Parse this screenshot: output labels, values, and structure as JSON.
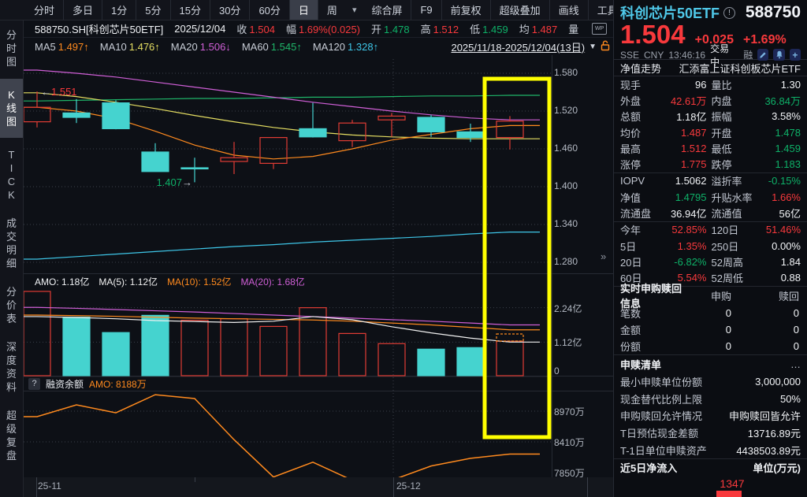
{
  "colors": {
    "red": "#f8393c",
    "green": "#0eb168",
    "white": "#f2f4f7",
    "gray": "#c2c7d1",
    "candle_up": "#e03c34",
    "candle_down": "#45d3cf",
    "ma5": "#ff8a1e",
    "ma10": "#e5de62",
    "ma20": "#cf5fd6",
    "ma60": "#1fb569",
    "ma120": "#3ec6e8",
    "vma5": "#f0f0f0",
    "vma10": "#ff8a1e",
    "vma20": "#cf5fd6",
    "financing": "#ff8a1e",
    "highlight": "#ffff00",
    "grid": "#3a3f4a",
    "divider": "#262a33"
  },
  "toolbar": {
    "periods": [
      "分时",
      "多日",
      "1分",
      "5分",
      "15分",
      "30分",
      "60分",
      "日",
      "周"
    ],
    "selected": "日",
    "dropdown_icon": "▾",
    "right_items": [
      "综合屏",
      "F9",
      "前复权",
      "超级叠加",
      "画线",
      "工具"
    ],
    "gear_icon": "⚙",
    "help_icon": "?",
    "chevron_right_icon": "›"
  },
  "info_bar": {
    "items": [
      {
        "t": "588750.SH[科创芯片50ETF]",
        "c": "w"
      },
      {
        "t": "2025/12/04",
        "c": "w"
      },
      {
        "l": "收",
        "v": "1.504",
        "c": "r"
      },
      {
        "l": "幅",
        "v": "1.69%(0.025)",
        "c": "r"
      },
      {
        "l": "开",
        "v": "1.478",
        "c": "g"
      },
      {
        "l": "高",
        "v": "1.512",
        "c": "r"
      },
      {
        "l": "低",
        "v": "1.459",
        "c": "g"
      },
      {
        "l": "均",
        "v": "1.487",
        "c": "r"
      },
      {
        "l": "量",
        "v": "",
        "c": "w"
      }
    ],
    "wp_icon": "WP"
  },
  "ma_bar": {
    "items": [
      {
        "label": "MA5",
        "value": "1.497",
        "arrow": "↑",
        "color": "ma5"
      },
      {
        "label": "MA10",
        "value": "1.476",
        "arrow": "↑",
        "color": "ma10"
      },
      {
        "label": "MA20",
        "value": "1.506",
        "arrow": "↓",
        "color": "ma20"
      },
      {
        "label": "MA60",
        "value": "1.545",
        "arrow": "↑",
        "color": "ma60"
      },
      {
        "label": "MA120",
        "value": "1.328",
        "arrow": "↑",
        "color": "ma120"
      }
    ],
    "range": "2025/11/18-2025/12/04(13日)",
    "caret": "▼"
  },
  "sidebar": {
    "items": [
      {
        "label": "分时图",
        "active": false
      },
      {
        "label": "K线图",
        "active": true
      },
      {
        "label": "TICK",
        "active": false
      },
      {
        "label": "成交明细",
        "active": false
      },
      {
        "label": "分价表",
        "active": false
      },
      {
        "label": "深度资料",
        "active": false
      },
      {
        "label": "超级复盘",
        "active": false
      }
    ]
  },
  "collapse_arrow": "»",
  "quote_header": {
    "name": "科创芯片50ETF",
    "info_icon": "!",
    "code": "588750",
    "price": "1.504",
    "change": "+0.025",
    "change_pct": "+1.69%",
    "exchange": "SSE",
    "currency": "CNY",
    "time": "13:46:16",
    "status": "交易中",
    "margin_flag": "融"
  },
  "panel": {
    "fund_row": {
      "left": "净值走势",
      "right": "汇添富上证科创板芯片ETF"
    },
    "stats_sections": [
      [
        [
          "现手",
          "96",
          "w",
          "量比",
          "1.30",
          "w"
        ],
        [
          "外盘",
          "42.61万",
          "r",
          "内盘",
          "36.84万",
          "g"
        ],
        [
          "总额",
          "1.18亿",
          "w",
          "振幅",
          "3.58%",
          "w"
        ],
        [
          "均价",
          "1.487",
          "r",
          "开盘",
          "1.478",
          "g"
        ],
        [
          "最高",
          "1.512",
          "r",
          "最低",
          "1.459",
          "g"
        ],
        [
          "涨停",
          "1.775",
          "r",
          "跌停",
          "1.183",
          "g"
        ]
      ],
      [
        [
          "IOPV",
          "1.5062",
          "w",
          "溢折率",
          "-0.15%",
          "g"
        ],
        [
          "净值",
          "1.4795",
          "g",
          "升贴水率",
          "1.66%",
          "r"
        ],
        [
          "流通盘",
          "36.94亿",
          "w",
          "流通值",
          "56亿",
          "w"
        ]
      ],
      [
        [
          "今年",
          "52.85%",
          "r",
          "120日",
          "51.46%",
          "r"
        ],
        [
          "5日",
          "1.35%",
          "r",
          "250日",
          "0.00%",
          "w"
        ],
        [
          "20日",
          "-6.82%",
          "g",
          "52周高",
          "1.84",
          "w"
        ],
        [
          "60日",
          "5.54%",
          "r",
          "52周低",
          "0.88",
          "w"
        ]
      ]
    ],
    "subscribe": {
      "title": "实时申购赎回信息",
      "col1": "申购",
      "col2": "赎回",
      "rows": [
        [
          "笔数",
          "0",
          "0"
        ],
        [
          "金额",
          "0",
          "0"
        ],
        [
          "份额",
          "0",
          "0"
        ]
      ]
    },
    "redeem": {
      "title": "申赎清单",
      "more": "…",
      "rows": [
        [
          "最小申赎单位份额",
          "3,000,000"
        ],
        [
          "现金替代比例上限",
          "50%"
        ],
        [
          "申购赎回允许情况",
          "申购赎回皆允许"
        ],
        [
          "T日预估现金差额",
          "13716.89元"
        ],
        [
          "T-1日单位申赎资产",
          "4438503.89元"
        ]
      ]
    },
    "netflow": {
      "title": "近5日净流入",
      "unit": "单位(万元)",
      "bar_value": "1347"
    }
  },
  "chart_data": {
    "type": "candlestick",
    "title": "588750.SH 科创芯片50ETF 日K 2025/11/18-2025/12/04",
    "price_axis": {
      "ticks": [
        "1.580",
        "1.520",
        "1.460",
        "1.400",
        "1.340",
        "1.280"
      ],
      "max": 1.58,
      "step": 0.06
    },
    "x_axis_labels": [
      "25-11",
      "25-12"
    ],
    "candles": [
      {
        "o": 1.503,
        "c": 1.526,
        "h": 1.551,
        "l": 1.494,
        "v": 2.77,
        "cu": true,
        "vu": true
      },
      {
        "o": 1.517,
        "c": 1.51,
        "h": 1.539,
        "l": 1.501,
        "v": 1.93,
        "cu": false,
        "vu": false
      },
      {
        "o": 1.533,
        "c": 1.492,
        "h": 1.537,
        "l": 1.491,
        "v": 1.43,
        "cu": false,
        "vu": false
      },
      {
        "o": 1.455,
        "c": 1.424,
        "h": 1.469,
        "l": 1.424,
        "v": 1.99,
        "cu": false,
        "vu": false
      },
      {
        "o": 1.43,
        "c": 1.429,
        "h": 1.446,
        "l": 1.407,
        "v": 1.83,
        "cu": false,
        "vu": true
      },
      {
        "o": 1.44,
        "c": 1.446,
        "h": 1.471,
        "l": 1.42,
        "v": 1.88,
        "cu": true,
        "vu": true
      },
      {
        "o": 1.437,
        "c": 1.478,
        "h": 1.478,
        "l": 1.428,
        "v": 1.63,
        "cu": true,
        "vu": true
      },
      {
        "o": 1.492,
        "c": 1.479,
        "h": 1.533,
        "l": 1.478,
        "v": 2.24,
        "cu": false,
        "vu": true
      },
      {
        "o": 1.473,
        "c": 1.501,
        "h": 1.506,
        "l": 1.463,
        "v": 1.4,
        "cu": true,
        "vu": true
      },
      {
        "o": 1.506,
        "c": 1.512,
        "h": 1.517,
        "l": 1.479,
        "v": 1.07,
        "cu": true,
        "vu": true
      },
      {
        "o": 1.51,
        "c": 1.487,
        "h": 1.514,
        "l": 1.479,
        "v": 0.89,
        "cu": false,
        "vu": false
      },
      {
        "o": 1.487,
        "c": 1.478,
        "h": 1.5,
        "l": 1.471,
        "v": 0.94,
        "cu": false,
        "vu": false
      },
      {
        "o": 1.478,
        "c": 1.504,
        "h": 1.512,
        "l": 1.459,
        "v": 1.15,
        "cu": true,
        "vu": true
      }
    ],
    "ma_price": {
      "ma5": [
        1.526,
        1.52,
        1.508,
        1.488,
        1.466,
        1.45,
        1.444,
        1.448,
        1.46,
        1.474,
        1.483,
        1.492,
        1.497
      ],
      "ma10": [
        1.549,
        1.543,
        1.534,
        1.524,
        1.513,
        1.503,
        1.494,
        1.487,
        1.482,
        1.479,
        1.477,
        1.476,
        1.476
      ],
      "ma20": [
        1.585,
        1.58,
        1.574,
        1.566,
        1.558,
        1.55,
        1.542,
        1.534,
        1.527,
        1.52,
        1.514,
        1.509,
        1.506
      ],
      "ma60": [
        1.536,
        1.537,
        1.538,
        1.539,
        1.54,
        1.54,
        1.541,
        1.542,
        1.542,
        1.543,
        1.544,
        1.544,
        1.545
      ],
      "ma120": [
        1.285,
        1.289,
        1.293,
        1.297,
        1.301,
        1.305,
        1.308,
        1.312,
        1.315,
        1.318,
        1.321,
        1.325,
        1.328
      ]
    },
    "volume_axis": {
      "ticks": [
        "2.24亿",
        "1.12亿",
        "0"
      ],
      "tick_values": [
        2.24,
        1.12,
        0
      ]
    },
    "volume_amo": {
      "items": [
        {
          "text": "AMO: 1.18亿",
          "color": "white"
        },
        {
          "text": "MA(5): 1.12亿",
          "color": "vma5"
        },
        {
          "text": "MA(10): 1.52亿",
          "color": "vma10"
        },
        {
          "text": "MA(20): 1.68亿",
          "color": "vma20"
        }
      ]
    },
    "ma_volume": {
      "vma5": [
        1.95,
        1.92,
        1.88,
        1.82,
        1.79,
        1.76,
        1.8,
        1.95,
        1.85,
        1.62,
        1.42,
        1.25,
        1.12
      ],
      "vma10": [
        2.0,
        1.98,
        1.96,
        1.93,
        1.9,
        1.88,
        1.86,
        1.84,
        1.8,
        1.74,
        1.68,
        1.6,
        1.52
      ],
      "vma20": [
        2.25,
        2.22,
        2.18,
        2.14,
        2.1,
        2.05,
        2.0,
        1.95,
        1.9,
        1.85,
        1.8,
        1.74,
        1.68
      ]
    },
    "financing": {
      "help": "?",
      "label": "融资余额",
      "amo": "AMO: 8188万",
      "values": [
        8870,
        9085,
        8940,
        9270,
        9200,
        8450,
        7770,
        8040,
        7710,
        7710,
        7970,
        8110,
        8188
      ],
      "axis_ticks": [
        {
          "label": "8970万",
          "value": 8970
        },
        {
          "label": "8410万",
          "value": 8410
        },
        {
          "label": "7850万",
          "value": 7850
        }
      ]
    },
    "annotations": {
      "high_label": "1.551",
      "high_arrow": "←",
      "low_label": "1.407",
      "low_arrow": "→",
      "highlight_last_column": true,
      "estimated_volume_box": true
    }
  }
}
